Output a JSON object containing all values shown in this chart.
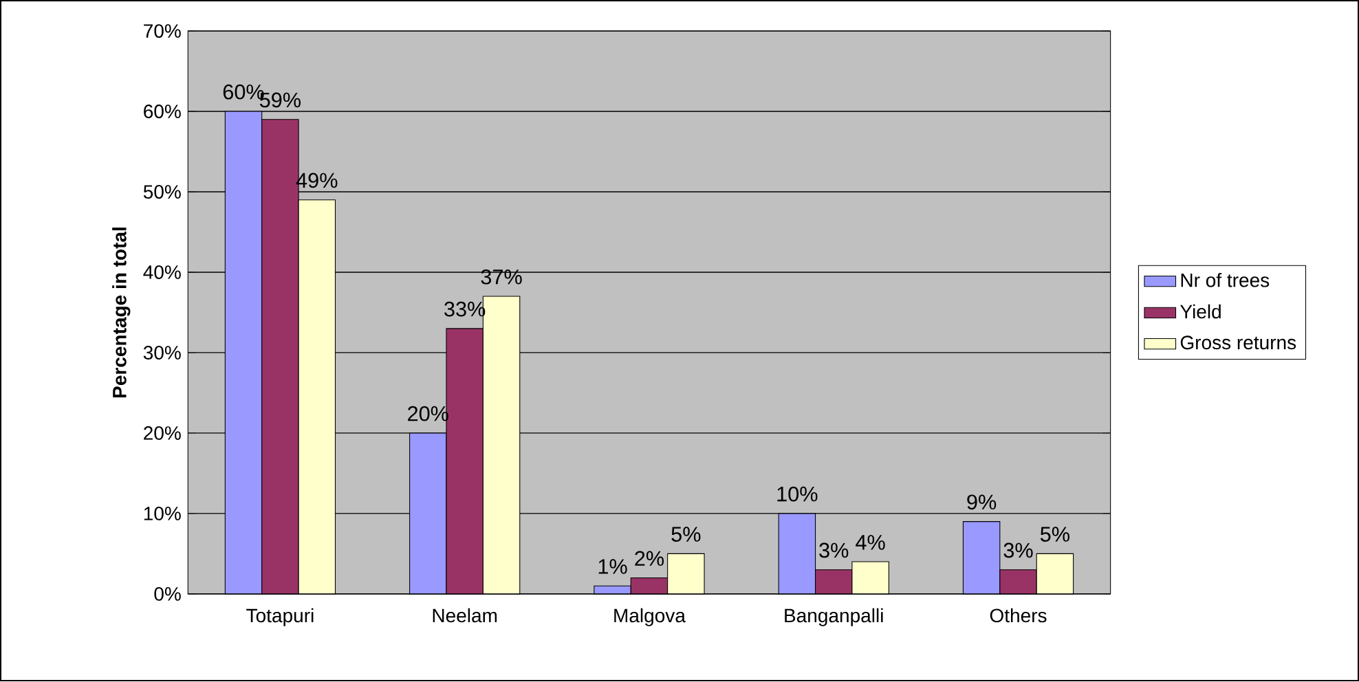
{
  "chart_data": {
    "type": "bar",
    "ylabel": "Percentage in total",
    "categories": [
      "Totapuri",
      "Neelam",
      "Malgova",
      "Banganpalli",
      "Others"
    ],
    "series": [
      {
        "name": "Nr of trees",
        "color": "#9999ff",
        "values": [
          60,
          20,
          1,
          10,
          9
        ],
        "value_labels": [
          "60%",
          "20%",
          "1%",
          "10%",
          "9%"
        ]
      },
      {
        "name": "Yield",
        "color": "#993366",
        "values": [
          59,
          33,
          2,
          3,
          3
        ],
        "value_labels": [
          "59%",
          "33%",
          "2%",
          "3%",
          "3%"
        ]
      },
      {
        "name": "Gross returns",
        "color": "#ffffcc",
        "values": [
          49,
          37,
          5,
          4,
          5
        ],
        "value_labels": [
          "49%",
          "37%",
          "5%",
          "4%",
          "5%"
        ]
      }
    ],
    "ylim": [
      0,
      70
    ],
    "yticks": [
      {
        "value": 0,
        "label": "0%"
      },
      {
        "value": 10,
        "label": "10%"
      },
      {
        "value": 20,
        "label": "20%"
      },
      {
        "value": 30,
        "label": "30%"
      },
      {
        "value": 40,
        "label": "40%"
      },
      {
        "value": 50,
        "label": "50%"
      },
      {
        "value": 60,
        "label": "60%"
      },
      {
        "value": 70,
        "label": "70%"
      }
    ],
    "grid": "y",
    "legend": "right"
  }
}
